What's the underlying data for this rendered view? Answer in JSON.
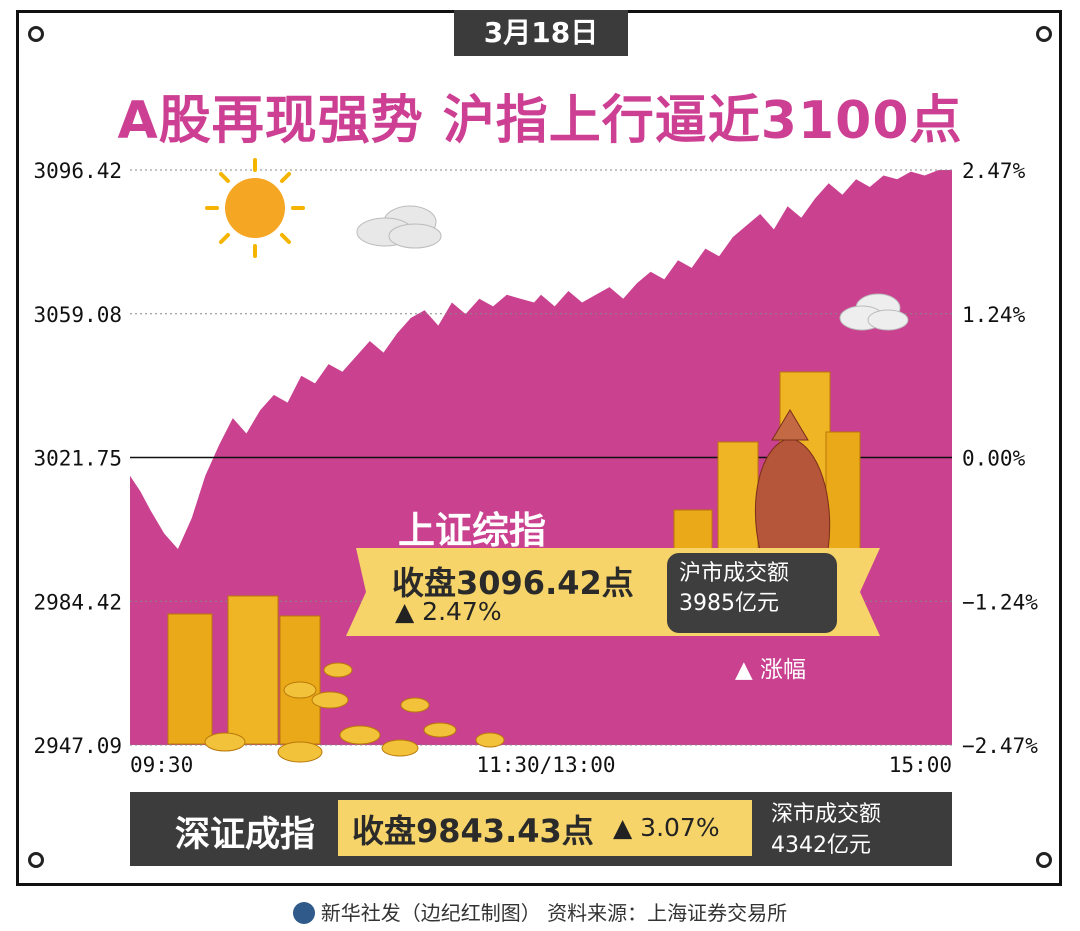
{
  "date_tab": "3月18日",
  "headline": "A股再现强势  沪指上行逼近3100点",
  "chart_data": {
    "type": "area",
    "y_ticks_left": [
      "3096.42",
      "3059.08",
      "3021.75",
      "2984.42",
      "2947.09"
    ],
    "y_ticks_right": [
      "2.47%",
      "1.24%",
      "0.00%",
      "−1.24%",
      "−2.47%"
    ],
    "x_ticks": [
      "09:30",
      "11:30/13:00",
      "15:00"
    ],
    "ylim": [
      2947.09,
      3096.42
    ],
    "baseline": 3021.75,
    "x": [
      0,
      3,
      6,
      10,
      14,
      18,
      22,
      26,
      30,
      34,
      38,
      42,
      46,
      50,
      54,
      58,
      62,
      66,
      70,
      74,
      78,
      82,
      86,
      90,
      94,
      98,
      102,
      106,
      110,
      114,
      118,
      120,
      124,
      128,
      132,
      136,
      140,
      144,
      148,
      152,
      156,
      160,
      164,
      168,
      172,
      176,
      180,
      184,
      188,
      192,
      196,
      200,
      204,
      208,
      212,
      216,
      220,
      224,
      228,
      232,
      236,
      240
    ],
    "values": [
      3017,
      3013,
      3008,
      3002,
      2998,
      3006,
      3017,
      3025,
      3032,
      3028,
      3034,
      3038,
      3036,
      3043,
      3041,
      3046,
      3044,
      3048,
      3052,
      3049,
      3054,
      3058,
      3060,
      3056,
      3062,
      3059,
      3063,
      3061,
      3064,
      3063,
      3062,
      3064,
      3061,
      3065,
      3062,
      3064,
      3066,
      3063,
      3067,
      3070,
      3068,
      3073,
      3071,
      3076,
      3074,
      3079,
      3082,
      3085,
      3081,
      3087,
      3084,
      3089,
      3093,
      3090,
      3094,
      3092,
      3095,
      3094,
      3096,
      3095,
      3096.4,
      3096.42
    ]
  },
  "colors": {
    "area": "#c9418f",
    "headline": "#cc3f93",
    "banner": "#f6d46a",
    "dark": "#3c3c3c"
  },
  "shanghai": {
    "title": "上证综指",
    "close": "收盘3096.42点",
    "change": "▲ 2.47%",
    "volume_label": "沪市成交额",
    "volume_value": "3985亿元"
  },
  "legend": "▲ 涨幅",
  "shenzhen": {
    "title": "深证成指",
    "close": "收盘9843.43点",
    "change": "▲ 3.07%",
    "volume_label": "深市成交额",
    "volume_value": "4342亿元"
  },
  "footer": "新华社发（边纪红制图）   资料来源：上海证券交易所"
}
